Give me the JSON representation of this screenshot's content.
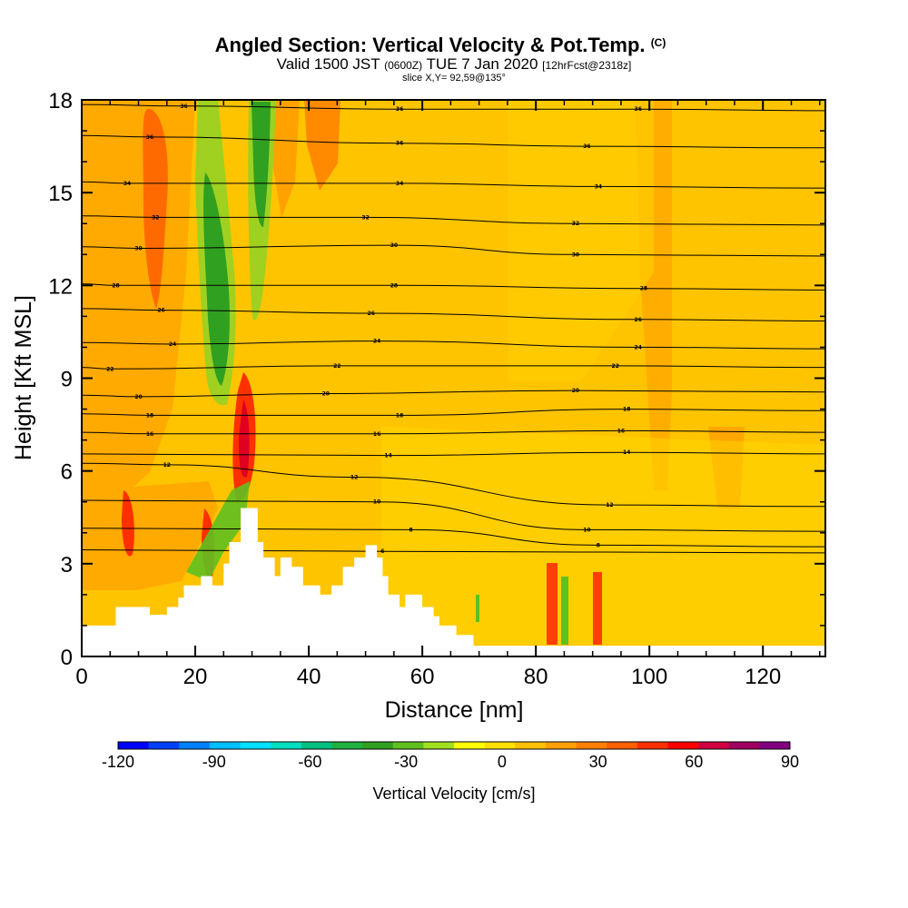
{
  "chart_data": {
    "type": "heatmap",
    "title": "Angled Section: Vertical Velocity & Pot.Temp.",
    "title_mark": "(C)",
    "subtitle": {
      "valid": "Valid 1500 JST",
      "utc": "(0600Z)",
      "date": "TUE 7 Jan 2020",
      "forecast": "[12hrFcst@2318z]"
    },
    "slice_label": "slice X,Y= 92,59@135°",
    "xlabel": "Distance [nm]",
    "ylabel": "Height [Kft MSL]",
    "xlim": [
      0,
      131
    ],
    "ylim": [
      0,
      18
    ],
    "x_ticks": [
      "0",
      "20",
      "40",
      "60",
      "80",
      "100",
      "120"
    ],
    "y_ticks": [
      "0",
      "3",
      "6",
      "9",
      "12",
      "15",
      "18"
    ],
    "colorbar": {
      "label": "Vertical Velocity [cm/s]",
      "range": [
        -120,
        90
      ],
      "tick_labels": [
        "-120",
        "-90",
        "-60",
        "-30",
        "0",
        "30",
        "60",
        "90"
      ],
      "colors": [
        "#0000ff",
        "#0040ff",
        "#0080ff",
        "#00bfff",
        "#00e0ff",
        "#00e0c0",
        "#00c080",
        "#20b040",
        "#30a020",
        "#60c020",
        "#a0e020",
        "#ffff00",
        "#ffe000",
        "#ffc000",
        "#ffa000",
        "#ff8000",
        "#ff6000",
        "#ff3000",
        "#ff0000",
        "#d00040",
        "#a00060",
        "#800080"
      ]
    },
    "terrain": [
      [
        0,
        1
      ],
      [
        6,
        1
      ],
      [
        6,
        1.6
      ],
      [
        12,
        1.6
      ],
      [
        12,
        1.35
      ],
      [
        15,
        1.35
      ],
      [
        15,
        1.6
      ],
      [
        17,
        1.6
      ],
      [
        17,
        1.9
      ],
      [
        18,
        1.9
      ],
      [
        18,
        2.3
      ],
      [
        21,
        2.3
      ],
      [
        21,
        2.6
      ],
      [
        23,
        2.6
      ],
      [
        23,
        2.3
      ],
      [
        25,
        2.3
      ],
      [
        25,
        3.0
      ],
      [
        26,
        3.0
      ],
      [
        26,
        3.7
      ],
      [
        28,
        3.7
      ],
      [
        28,
        4.8
      ],
      [
        31,
        4.8
      ],
      [
        31,
        3.7
      ],
      [
        32,
        3.7
      ],
      [
        32,
        3.2
      ],
      [
        34,
        3.2
      ],
      [
        34,
        2.6
      ],
      [
        35,
        2.6
      ],
      [
        35,
        3.2
      ],
      [
        37,
        3.2
      ],
      [
        37,
        2.9
      ],
      [
        39,
        2.9
      ],
      [
        39,
        2.3
      ],
      [
        42,
        2.3
      ],
      [
        42,
        2.0
      ],
      [
        44,
        2.0
      ],
      [
        44,
        2.3
      ],
      [
        46,
        2.3
      ],
      [
        46,
        2.9
      ],
      [
        48,
        2.9
      ],
      [
        48,
        3.2
      ],
      [
        50,
        3.2
      ],
      [
        50,
        3.6
      ],
      [
        52,
        3.6
      ],
      [
        52,
        3.2
      ],
      [
        53,
        3.2
      ],
      [
        53,
        2.6
      ],
      [
        54,
        2.6
      ],
      [
        54,
        2.0
      ],
      [
        56,
        2.0
      ],
      [
        56,
        1.6
      ],
      [
        57,
        1.6
      ],
      [
        57,
        2.0
      ],
      [
        60,
        2.0
      ],
      [
        60,
        1.6
      ],
      [
        62,
        1.6
      ],
      [
        62,
        1.3
      ],
      [
        63,
        1.3
      ],
      [
        63,
        1.0
      ],
      [
        66,
        1.0
      ],
      [
        66,
        0.7
      ],
      [
        69,
        0.7
      ],
      [
        69,
        0.35
      ],
      [
        131,
        0.35
      ]
    ],
    "isentropes": [
      {
        "label": "36",
        "at": [
          [
            18,
            17.8
          ],
          [
            56,
            17.7
          ],
          [
            98,
            17.7
          ]
        ]
      },
      {
        "label": "36",
        "at": [
          [
            12,
            16.8
          ],
          [
            56,
            16.6
          ],
          [
            89,
            16.5
          ]
        ]
      },
      {
        "label": "34",
        "at": [
          [
            8,
            15.3
          ],
          [
            56,
            15.3
          ],
          [
            91,
            15.2
          ]
        ]
      },
      {
        "label": "32",
        "at": [
          [
            13,
            14.2
          ],
          [
            50,
            14.2
          ],
          [
            87,
            14.0
          ]
        ]
      },
      {
        "label": "30",
        "at": [
          [
            10,
            13.2
          ],
          [
            55,
            13.3
          ],
          [
            87,
            13.0
          ]
        ]
      },
      {
        "label": "28",
        "at": [
          [
            6,
            12.0
          ],
          [
            55,
            12.0
          ],
          [
            99,
            11.9
          ]
        ]
      },
      {
        "label": "26",
        "at": [
          [
            14,
            11.2
          ],
          [
            51,
            11.1
          ],
          [
            98,
            10.9
          ]
        ]
      },
      {
        "label": "24",
        "at": [
          [
            16,
            10.1
          ],
          [
            52,
            10.2
          ],
          [
            98,
            10.0
          ]
        ]
      },
      {
        "label": "22",
        "at": [
          [
            5,
            9.3
          ],
          [
            45,
            9.4
          ],
          [
            94,
            9.4
          ]
        ]
      },
      {
        "label": "20",
        "at": [
          [
            10,
            8.4
          ],
          [
            43,
            8.5
          ],
          [
            87,
            8.6
          ]
        ]
      },
      {
        "label": "18",
        "at": [
          [
            12,
            7.8
          ],
          [
            56,
            7.8
          ],
          [
            96,
            8.0
          ]
        ]
      },
      {
        "label": "16",
        "at": [
          [
            12,
            7.2
          ],
          [
            52,
            7.2
          ],
          [
            95,
            7.3
          ]
        ]
      },
      {
        "label": "14",
        "at": [
          [
            54,
            6.5
          ],
          [
            96,
            6.6
          ]
        ]
      },
      {
        "label": "12",
        "at": [
          [
            15,
            6.2
          ],
          [
            48,
            5.8
          ],
          [
            93,
            4.9
          ]
        ]
      },
      {
        "label": "10",
        "at": [
          [
            52,
            5.0
          ],
          [
            89,
            4.1
          ]
        ]
      },
      {
        "label": "8",
        "at": [
          [
            58,
            4.1
          ],
          [
            91,
            3.6
          ]
        ]
      },
      {
        "label": "6",
        "at": [
          [
            53,
            3.4
          ]
        ]
      }
    ]
  }
}
